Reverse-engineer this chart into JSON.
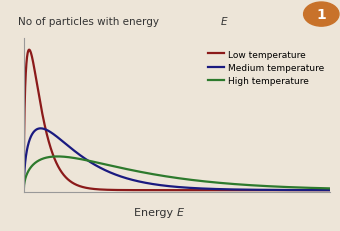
{
  "ylabel": "No of particles with energy E",
  "xlabel": "Energy ε",
  "background_color": "#ede5d8",
  "low_temp_color": "#8b1a1a",
  "medium_temp_color": "#1a1a80",
  "high_temp_color": "#2d7a2d",
  "legend_labels": [
    "Low temperature",
    "Medium temperature",
    "High temperature"
  ],
  "circle_color": "#c8722a",
  "circle_number": "1",
  "x_max": 10.0,
  "low_kT": 0.35,
  "med_kT": 1.1,
  "high_kT": 2.2,
  "low_amp": 1.0,
  "med_amp": 0.44,
  "high_amp": 0.24,
  "linewidth": 1.6
}
